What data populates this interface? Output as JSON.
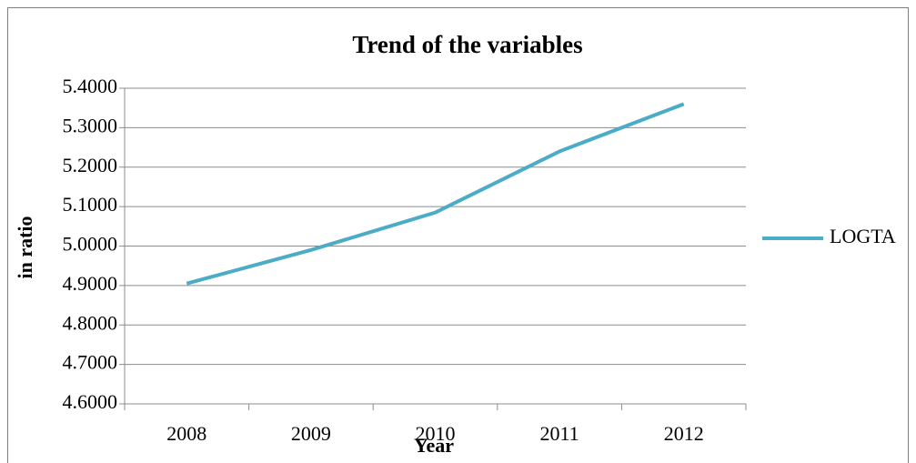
{
  "chart_data": {
    "type": "line",
    "title": "Trend of the variables",
    "x_label": "Year",
    "y_label": "in ratio",
    "categories": [
      "2008",
      "2009",
      "2010",
      "2011",
      "2012"
    ],
    "series": [
      {
        "name": "LOGTA",
        "color": "#4bacc6",
        "values": [
          4.905,
          4.99,
          5.085,
          5.24,
          5.36
        ]
      }
    ],
    "ylim": [
      4.6,
      5.4
    ],
    "yticks": [
      {
        "value": 4.6,
        "label": "4.6000"
      },
      {
        "value": 4.7,
        "label": "4.7000"
      },
      {
        "value": 4.8,
        "label": "4.8000"
      },
      {
        "value": 4.9,
        "label": "4.9000"
      },
      {
        "value": 5.0,
        "label": "5.0000"
      },
      {
        "value": 5.1,
        "label": "5.1000"
      },
      {
        "value": 5.2,
        "label": "5.2000"
      },
      {
        "value": 5.3,
        "label": "5.3000"
      },
      {
        "value": 5.4,
        "label": "5.4000"
      }
    ],
    "grid": true,
    "legend": "right"
  }
}
